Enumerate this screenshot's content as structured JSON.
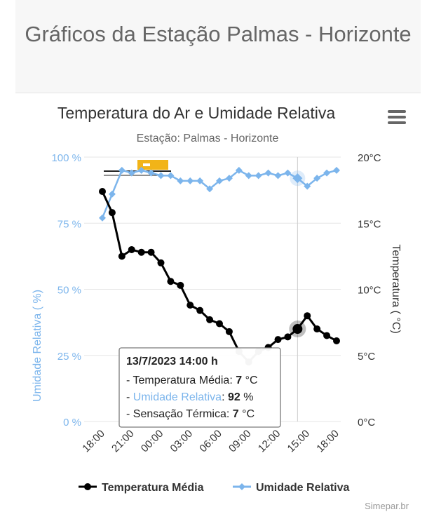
{
  "page": {
    "title": "Gráficos da Estação Palmas - Horizonte",
    "credit": "Simepar.br"
  },
  "colors": {
    "temperature": "#000000",
    "humidity": "#7cb5ec",
    "tooltip_border": "#7a7a7a",
    "grid": "#e6e6e6",
    "logo_gold": "#f2b418"
  },
  "icons": {
    "menu": "hamburger-menu-icon",
    "logo": "simepar-watermark-logo"
  },
  "chart_data": {
    "type": "line",
    "title": "Temperatura do Ar e Umidade Relativa",
    "subtitle": "Estação: Palmas - Horizonte",
    "x_tick_labels": [
      "18:00",
      "21:00",
      "00:00",
      "03:00",
      "06:00",
      "09:00",
      "12:00",
      "15:00",
      "18:00"
    ],
    "x_unit_note": "hours since first sample (18:00 on 12/7/2023), hourly readings",
    "y_left": {
      "label": "Umidade Relativa ( %)",
      "tick_labels": [
        "0 %",
        "25 %",
        "50 %",
        "75 %",
        "100 %"
      ],
      "range": [
        0,
        100
      ]
    },
    "y_right": {
      "label": "Temperatura ( °C)",
      "tick_labels": [
        "0°C",
        "5°C",
        "10°C",
        "15°C",
        "20°C"
      ],
      "range": [
        0,
        20
      ]
    },
    "legend_position": "bottom",
    "grid": true,
    "series": [
      {
        "name": "Temperatura Média",
        "axis": "right",
        "marker": "circle",
        "x": [
          0,
          1,
          2,
          3,
          4,
          5,
          6,
          7,
          8,
          9,
          10,
          11,
          12,
          13,
          14,
          15,
          16,
          17,
          18,
          19,
          20,
          21,
          22,
          23,
          24
        ],
        "values": [
          17.4,
          15.8,
          12.5,
          13.0,
          12.8,
          12.8,
          12.0,
          10.6,
          10.3,
          8.8,
          8.4,
          7.7,
          7.4,
          6.8,
          5.3,
          4.5,
          5.3,
          5.6,
          6.2,
          6.4,
          7.0,
          8.0,
          7.0,
          6.5,
          6.1
        ]
      },
      {
        "name": "Umidade Relativa",
        "axis": "left",
        "marker": "diamond",
        "x": [
          0,
          1,
          2,
          3,
          4,
          5,
          6,
          7,
          8,
          9,
          10,
          11,
          12,
          13,
          14,
          15,
          16,
          17,
          18,
          19,
          20,
          21,
          22,
          23,
          24
        ],
        "values": [
          77,
          86,
          95,
          94,
          95,
          94,
          93,
          93,
          91,
          91,
          91,
          88,
          91,
          92,
          95,
          93,
          93,
          94,
          93,
          94,
          92,
          89,
          92,
          94,
          95
        ]
      }
    ],
    "tooltip": {
      "index": 20,
      "title": "13/7/2023 14:00 h",
      "rows": [
        {
          "label": "Temperatura Média",
          "value": "7",
          "unit": "°C"
        },
        {
          "label": "Umidade Relativa",
          "value": "92",
          "unit": "%"
        },
        {
          "label": "Sensação Térmica",
          "value": "7",
          "unit": "°C"
        }
      ]
    }
  }
}
